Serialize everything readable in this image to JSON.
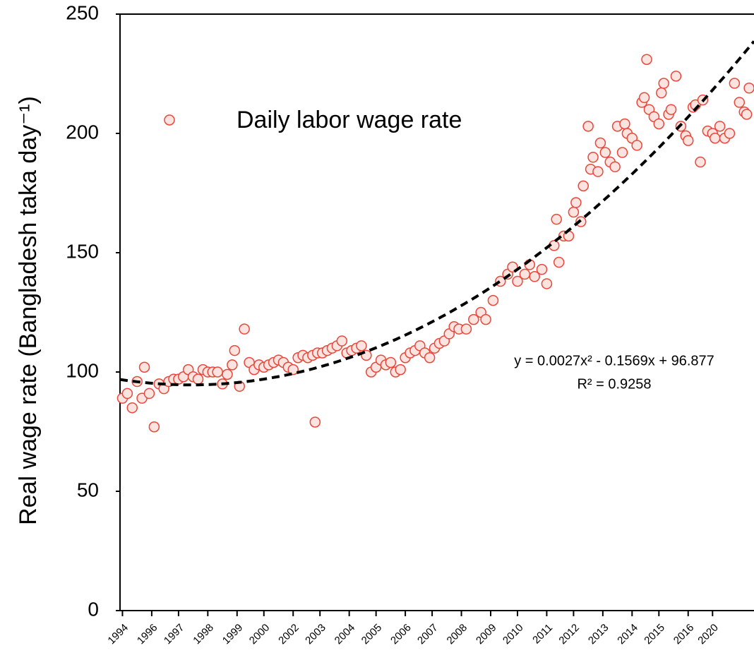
{
  "chart_data": {
    "type": "scatter",
    "y_label": "Real wage rate (Bangladesh taka day⁻¹)",
    "xlim": [
      0,
      260
    ],
    "ylim": [
      0,
      250
    ],
    "yticks": [
      0,
      50,
      100,
      150,
      200,
      250
    ],
    "xticks": [
      {
        "value": 1,
        "label": "1994"
      },
      {
        "value": 13,
        "label": "1996"
      },
      {
        "value": 24,
        "label": "1997"
      },
      {
        "value": 36,
        "label": "1998"
      },
      {
        "value": 48,
        "label": "1999"
      },
      {
        "value": 59,
        "label": "2000"
      },
      {
        "value": 71,
        "label": "2002"
      },
      {
        "value": 82,
        "label": "2003"
      },
      {
        "value": 94,
        "label": "2004"
      },
      {
        "value": 105,
        "label": "2005"
      },
      {
        "value": 117,
        "label": "2006"
      },
      {
        "value": 128,
        "label": "2007"
      },
      {
        "value": 140,
        "label": "2008"
      },
      {
        "value": 152,
        "label": "2009"
      },
      {
        "value": 163,
        "label": "2010"
      },
      {
        "value": 175,
        "label": "2011"
      },
      {
        "value": 186,
        "label": "2012"
      },
      {
        "value": 198,
        "label": "2013"
      },
      {
        "value": 210,
        "label": "2014"
      },
      {
        "value": 221,
        "label": "2015"
      },
      {
        "value": 233,
        "label": "2016"
      },
      {
        "value": 243,
        "label": "2020"
      }
    ],
    "x": [
      1,
      3,
      5,
      7,
      9,
      10,
      12,
      14,
      16,
      18,
      20,
      22,
      24,
      26,
      28,
      30,
      32,
      34,
      36,
      38,
      40,
      42,
      44,
      46,
      47,
      49,
      51,
      53,
      55,
      57,
      59,
      61,
      63,
      65,
      67,
      69,
      71,
      73,
      75,
      77,
      79,
      80,
      81,
      83,
      85,
      87,
      89,
      91,
      93,
      95,
      97,
      99,
      101,
      103,
      105,
      107,
      109,
      111,
      113,
      115,
      117,
      119,
      121,
      123,
      125,
      127,
      129,
      131,
      133,
      135,
      137,
      139,
      142,
      145,
      148,
      150,
      153,
      156,
      159,
      161,
      163,
      166,
      168,
      170,
      173,
      175,
      178,
      179,
      180,
      182,
      184,
      186,
      187,
      189,
      190,
      192,
      193,
      194,
      196,
      197,
      199,
      201,
      203,
      204,
      206,
      207,
      208,
      210,
      212,
      214,
      215,
      216,
      217,
      219,
      221,
      222,
      223,
      225,
      226,
      228,
      230,
      232,
      233,
      235,
      236,
      238,
      239,
      241,
      243,
      244,
      246,
      248,
      250,
      252,
      254,
      256,
      257,
      258
    ],
    "series": [
      {
        "name": "Daily labor wage rate",
        "color": "#e8473a",
        "fill": "#fbe3e0",
        "values": [
          89,
          91,
          85,
          96,
          89,
          102,
          91,
          77,
          95,
          93,
          96,
          97,
          97,
          98,
          101,
          98,
          97,
          101,
          100,
          100,
          100,
          95,
          99,
          103,
          109,
          94,
          118,
          104,
          101,
          103,
          102,
          103,
          104,
          105,
          104,
          102,
          101,
          106,
          107,
          106,
          107,
          79,
          108,
          108,
          109,
          110,
          111,
          113,
          108,
          109,
          110,
          111,
          107,
          100,
          102,
          105,
          103,
          104,
          100,
          101,
          106,
          108,
          109,
          111,
          108,
          106,
          110,
          112,
          113,
          116,
          119,
          118,
          118,
          122,
          125,
          122,
          130,
          138,
          141,
          144,
          138,
          141,
          145,
          140,
          143,
          137,
          153,
          164,
          146,
          157,
          157,
          167,
          171,
          163,
          178,
          203,
          185,
          190,
          184,
          196,
          192,
          188,
          186,
          203,
          192,
          204,
          200,
          198,
          195,
          213,
          215,
          231,
          210,
          207,
          204,
          217,
          221,
          208,
          210,
          224,
          203,
          199,
          197,
          211,
          212,
          188,
          214,
          201,
          200,
          198,
          203,
          198,
          200,
          221,
          213,
          209,
          208,
          219
        ]
      }
    ],
    "trend": {
      "type": "poly2",
      "coefficients": [
        0.0027,
        -0.1569,
        96.877
      ],
      "color": "#000000"
    },
    "annotations": [
      "y = 0.0027x² - 0.1569x + 96.877",
      "R² = 0.9258"
    ]
  }
}
